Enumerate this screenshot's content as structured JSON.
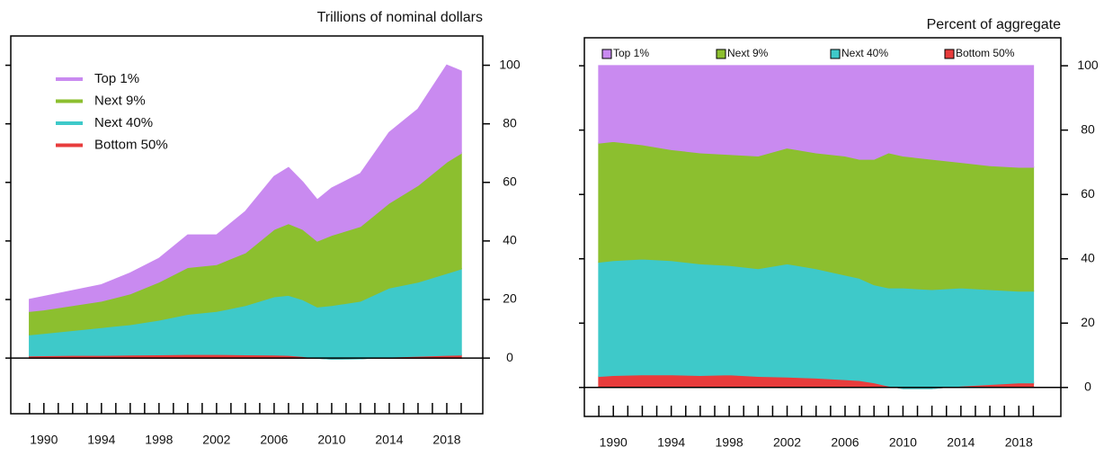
{
  "chart_data": [
    {
      "type": "stacked_area",
      "title": "Trillions of nominal dollars",
      "legend": "upper left",
      "x": [
        1989,
        1990,
        1992,
        1994,
        1996,
        1998,
        2000,
        2002,
        2004,
        2006,
        2007,
        2008,
        2009,
        2010,
        2012,
        2014,
        2016,
        2018,
        2019
      ],
      "series": [
        {
          "name": "Top 1%",
          "color": "#c98af0",
          "values": [
            4,
            4.5,
            5,
            5.5,
            7,
            8,
            11,
            10,
            14,
            18,
            19,
            16,
            14,
            16,
            18,
            24,
            26,
            33,
            28
          ]
        },
        {
          "name": "Next 9%",
          "color": "#8cbf2f",
          "values": [
            8,
            8,
            8.5,
            9,
            10.5,
            13,
            16,
            16,
            18,
            23,
            24.5,
            24,
            22.5,
            24,
            25.5,
            29,
            33,
            38,
            39.5
          ]
        },
        {
          "name": "Next 40%",
          "color": "#3ec9c9",
          "values": [
            7.2,
            7.6,
            8.5,
            9.5,
            10.4,
            11.8,
            13.7,
            14.7,
            16.8,
            19.9,
            20.5,
            19.4,
            17.5,
            18.3,
            19.7,
            23.6,
            25.3,
            28,
            29.4
          ]
        },
        {
          "name": "Bottom 50%",
          "color": "#e83c3c",
          "values": [
            0.8,
            0.9,
            1,
            1,
            1.1,
            1.2,
            1.3,
            1.3,
            1.2,
            1.1,
            1,
            0.6,
            0,
            -0.3,
            -0.2,
            0.4,
            0.7,
            1,
            1.1
          ]
        }
      ],
      "xlim": [
        1987.7,
        2020.5
      ],
      "xticks": [
        1990,
        1994,
        1998,
        2002,
        2006,
        2010,
        2014,
        2018
      ],
      "xminor": [
        1989,
        1991,
        1992,
        1993,
        1995,
        1996,
        1997,
        1999,
        2000,
        2001,
        2003,
        2004,
        2005,
        2007,
        2008,
        2009,
        2011,
        2012,
        2013,
        2015,
        2016,
        2017,
        2019
      ],
      "ylim": [
        -19,
        110
      ],
      "yticks": [
        0,
        20,
        40,
        60,
        80,
        100
      ]
    },
    {
      "type": "stacked_area",
      "title": "Percent of aggregate",
      "legend": "top",
      "x": [
        1989,
        1990,
        1992,
        1994,
        1996,
        1998,
        2000,
        2002,
        2004,
        2006,
        2007,
        2008,
        2009,
        2010,
        2012,
        2014,
        2016,
        2018,
        2019
      ],
      "series": [
        {
          "name": "Top 1%",
          "color": "#c98af0",
          "values": [
            24,
            23.5,
            24.5,
            26,
            27,
            27.5,
            28,
            25.5,
            27,
            28,
            29,
            29,
            27,
            28,
            29,
            30,
            31,
            31.5,
            31.5
          ]
        },
        {
          "name": "Next 9%",
          "color": "#8cbf2f",
          "values": [
            37,
            37,
            35.5,
            34.5,
            34.5,
            34.5,
            35,
            36,
            36,
            37,
            37,
            39,
            42,
            41,
            40.5,
            39,
            38.5,
            38.5,
            38.5
          ]
        },
        {
          "name": "Next 40%",
          "color": "#3ec9c9",
          "values": [
            35.5,
            35.7,
            36,
            35.5,
            34.7,
            34,
            33.5,
            35.2,
            34,
            32.5,
            31.8,
            30.5,
            30.5,
            31.3,
            30.8,
            30.5,
            29.5,
            28.5,
            28.5
          ]
        },
        {
          "name": "Bottom 50%",
          "color": "#e83c3c",
          "values": [
            3.5,
            3.8,
            4,
            4,
            3.8,
            4,
            3.5,
            3.3,
            3,
            2.5,
            2.2,
            1.5,
            0.5,
            -0.3,
            -0.3,
            0.5,
            1,
            1.5,
            1.5
          ]
        }
      ],
      "xlim": [
        1988,
        2020.9
      ],
      "xticks": [
        1990,
        1994,
        1998,
        2002,
        2006,
        2010,
        2014,
        2018
      ],
      "xminor": [
        1989,
        1991,
        1992,
        1993,
        1995,
        1996,
        1997,
        1999,
        2000,
        2001,
        2003,
        2004,
        2005,
        2007,
        2008,
        2009,
        2011,
        2012,
        2013,
        2015,
        2016,
        2017,
        2019
      ],
      "ylim": [
        -9,
        108.7
      ],
      "yticks": [
        0,
        20,
        40,
        60,
        80,
        100
      ]
    }
  ]
}
